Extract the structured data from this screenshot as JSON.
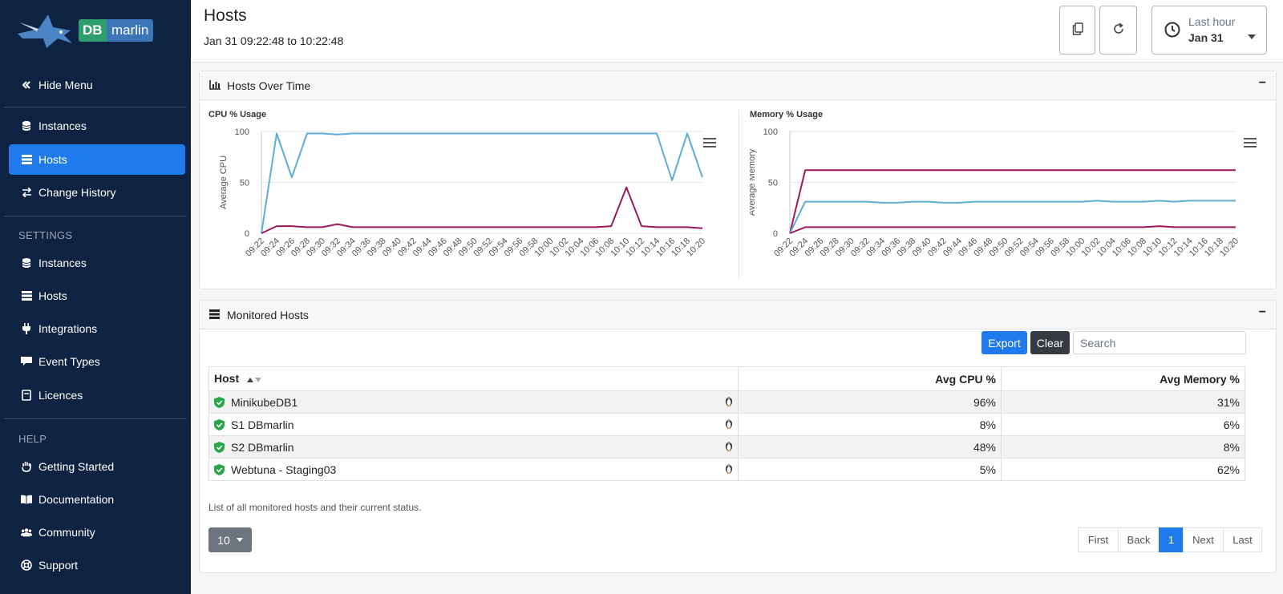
{
  "brand": {
    "db": "DB",
    "marlin": "marlin"
  },
  "sidebar": {
    "hide_menu": "Hide Menu",
    "main": [
      {
        "label": "Instances",
        "icon": "database-icon"
      },
      {
        "label": "Hosts",
        "icon": "server-icon",
        "active": true
      },
      {
        "label": "Change History",
        "icon": "arrows-exchange-icon"
      }
    ],
    "settings_heading": "SETTINGS",
    "settings": [
      {
        "label": "Instances",
        "icon": "database-icon"
      },
      {
        "label": "Hosts",
        "icon": "server-icon"
      },
      {
        "label": "Integrations",
        "icon": "plug-icon"
      },
      {
        "label": "Event Types",
        "icon": "flag-icon"
      },
      {
        "label": "Licences",
        "icon": "certificate-icon"
      }
    ],
    "help_heading": "HELP",
    "help": [
      {
        "label": "Getting Started",
        "icon": "hand-icon"
      },
      {
        "label": "Documentation",
        "icon": "book-icon"
      },
      {
        "label": "Community",
        "icon": "users-icon"
      },
      {
        "label": "Support",
        "icon": "lifebuoy-icon"
      }
    ]
  },
  "header": {
    "title": "Hosts",
    "range": "Jan 31 09:22:48 to 10:22:48",
    "time_preset": "Last hour",
    "time_date": "Jan 31"
  },
  "hosts_over_time": {
    "title": "Hosts Over Time",
    "collapse": "−"
  },
  "chart_data": [
    {
      "type": "line",
      "title": "CPU % Usage",
      "ylabel": "Average CPU",
      "ylim": [
        0,
        100
      ],
      "yticks": [
        "0",
        "50",
        "100"
      ],
      "x": [
        "09:22",
        "09:24",
        "09:26",
        "09:28",
        "09:30",
        "09:32",
        "09:34",
        "09:36",
        "09:38",
        "09:40",
        "09:42",
        "09:44",
        "09:46",
        "09:48",
        "09:50",
        "09:52",
        "09:54",
        "09:56",
        "09:58",
        "10:00",
        "10:02",
        "10:04",
        "10:06",
        "10:08",
        "10:10",
        "10:12",
        "10:14",
        "10:16",
        "10:18",
        "10:20"
      ],
      "series": [
        {
          "color": "#5aaed8",
          "values": [
            0,
            98,
            55,
            98,
            98,
            97,
            98,
            98,
            98,
            98,
            98,
            98,
            98,
            98,
            98,
            98,
            98,
            98,
            98,
            98,
            98,
            98,
            98,
            98,
            98,
            98,
            98,
            52,
            98,
            55
          ]
        },
        {
          "color": "#9a1a5c",
          "values": [
            0,
            7,
            7,
            6,
            6,
            9,
            6,
            6,
            6,
            6,
            6,
            6,
            6,
            6,
            6,
            6,
            6,
            6,
            6,
            6,
            6,
            6,
            6,
            7,
            45,
            7,
            6,
            6,
            6,
            5
          ]
        }
      ]
    },
    {
      "type": "line",
      "title": "Memory % Usage",
      "ylabel": "Average Memory",
      "ylim": [
        0,
        100
      ],
      "yticks": [
        "0",
        "50",
        "100"
      ],
      "x": [
        "09:22",
        "09:24",
        "09:26",
        "09:28",
        "09:30",
        "09:32",
        "09:34",
        "09:36",
        "09:38",
        "09:40",
        "09:42",
        "09:44",
        "09:46",
        "09:48",
        "09:50",
        "09:52",
        "09:54",
        "09:56",
        "09:58",
        "10:00",
        "10:02",
        "10:04",
        "10:06",
        "10:08",
        "10:10",
        "10:12",
        "10:14",
        "10:16",
        "10:18",
        "10:20"
      ],
      "series": [
        {
          "color": "#9a1a5c",
          "values": [
            0,
            62,
            62,
            62,
            62,
            62,
            62,
            62,
            62,
            62,
            62,
            62,
            62,
            62,
            62,
            62,
            62,
            62,
            62,
            62,
            62,
            62,
            62,
            62,
            62,
            62,
            62,
            62,
            62,
            62
          ]
        },
        {
          "color": "#5aaed8",
          "values": [
            0,
            31,
            31,
            31,
            31,
            31,
            30,
            30,
            31,
            31,
            30,
            30,
            31,
            31,
            31,
            31,
            31,
            31,
            31,
            31,
            32,
            31,
            31,
            31,
            32,
            31,
            32,
            32,
            32,
            32
          ]
        },
        {
          "color": "#9a1a5c",
          "values": [
            0,
            6,
            6,
            6,
            6,
            6,
            6,
            6,
            6,
            6,
            6,
            6,
            6,
            6,
            6,
            6,
            6,
            6,
            6,
            6,
            6,
            6,
            6,
            6,
            7,
            6,
            6,
            6,
            6,
            6
          ]
        }
      ]
    }
  ],
  "monitored_hosts": {
    "title": "Monitored Hosts",
    "collapse": "−",
    "export_label": "Export",
    "clear_label": "Clear",
    "search_placeholder": "Search",
    "columns": {
      "host": "Host",
      "cpu": "Avg CPU %",
      "mem": "Avg Memory %"
    },
    "rows": [
      {
        "host": "MinikubeDB1",
        "cpu": "96%",
        "mem": "31%",
        "status_color": "#28a745"
      },
      {
        "host": "S1 DBmarlin",
        "cpu": "8%",
        "mem": "6%",
        "status_color": "#28a745"
      },
      {
        "host": "S2 DBmarlin",
        "cpu": "48%",
        "mem": "8%",
        "status_color": "#28a745"
      },
      {
        "host": "Webtuna - Staging03",
        "cpu": "5%",
        "mem": "62%",
        "status_color": "#28a745"
      }
    ],
    "caption": "List of all monitored hosts and their current status.",
    "page_size": "10",
    "pager": {
      "first": "First",
      "back": "Back",
      "current": "1",
      "next": "Next",
      "last": "Last"
    }
  }
}
